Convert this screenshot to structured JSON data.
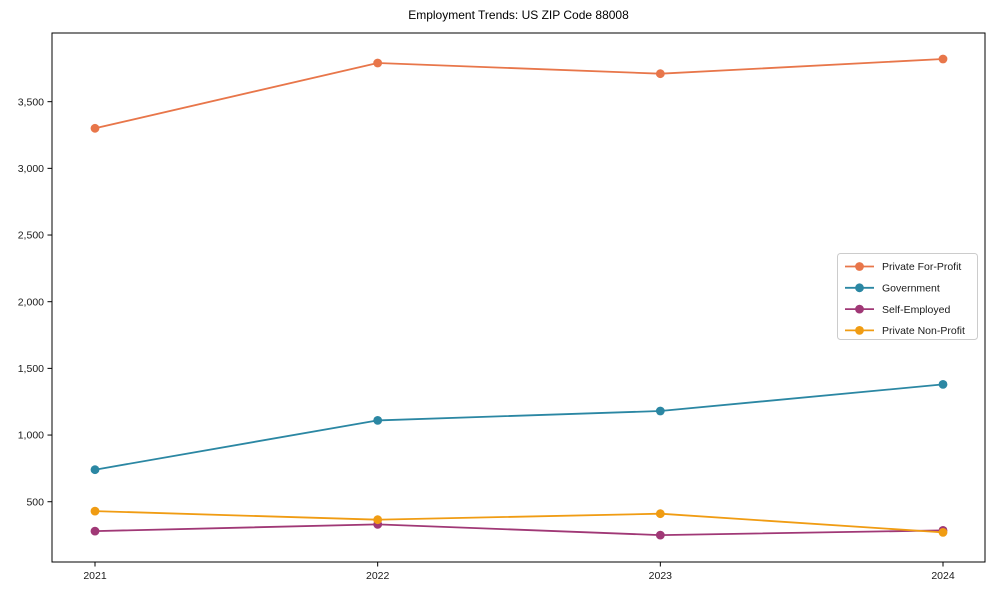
{
  "chart_data": {
    "type": "line",
    "title": "Employment Trends: US ZIP Code 88008",
    "xlabel": "",
    "ylabel": "",
    "x_categories": [
      "2021",
      "2022",
      "2023",
      "2024"
    ],
    "series": [
      {
        "name": "Private For-Profit",
        "color": "#e8764a",
        "values": [
          3300,
          3790,
          3710,
          3820
        ]
      },
      {
        "name": "Government",
        "color": "#2b87a3",
        "values": [
          740,
          1110,
          1180,
          1380
        ]
      },
      {
        "name": "Self-Employed",
        "color": "#a03876",
        "values": [
          280,
          330,
          250,
          285
        ]
      },
      {
        "name": "Private Non-Profit",
        "color": "#f09c13",
        "values": [
          430,
          365,
          410,
          270
        ]
      }
    ],
    "yticks": [
      500,
      1000,
      1500,
      2000,
      2500,
      3000,
      3500
    ],
    "ytick_labels": [
      "500",
      "1,000",
      "1,500",
      "2,000",
      "2,500",
      "3,000",
      "3,500"
    ],
    "ylim": [
      48,
      4015
    ],
    "grid": false,
    "marker": "circle",
    "legend_position": "center-right",
    "axis_color": "#000000",
    "tick_label_color": "#1a1a1a",
    "legend_border_color": "#cccccc"
  }
}
